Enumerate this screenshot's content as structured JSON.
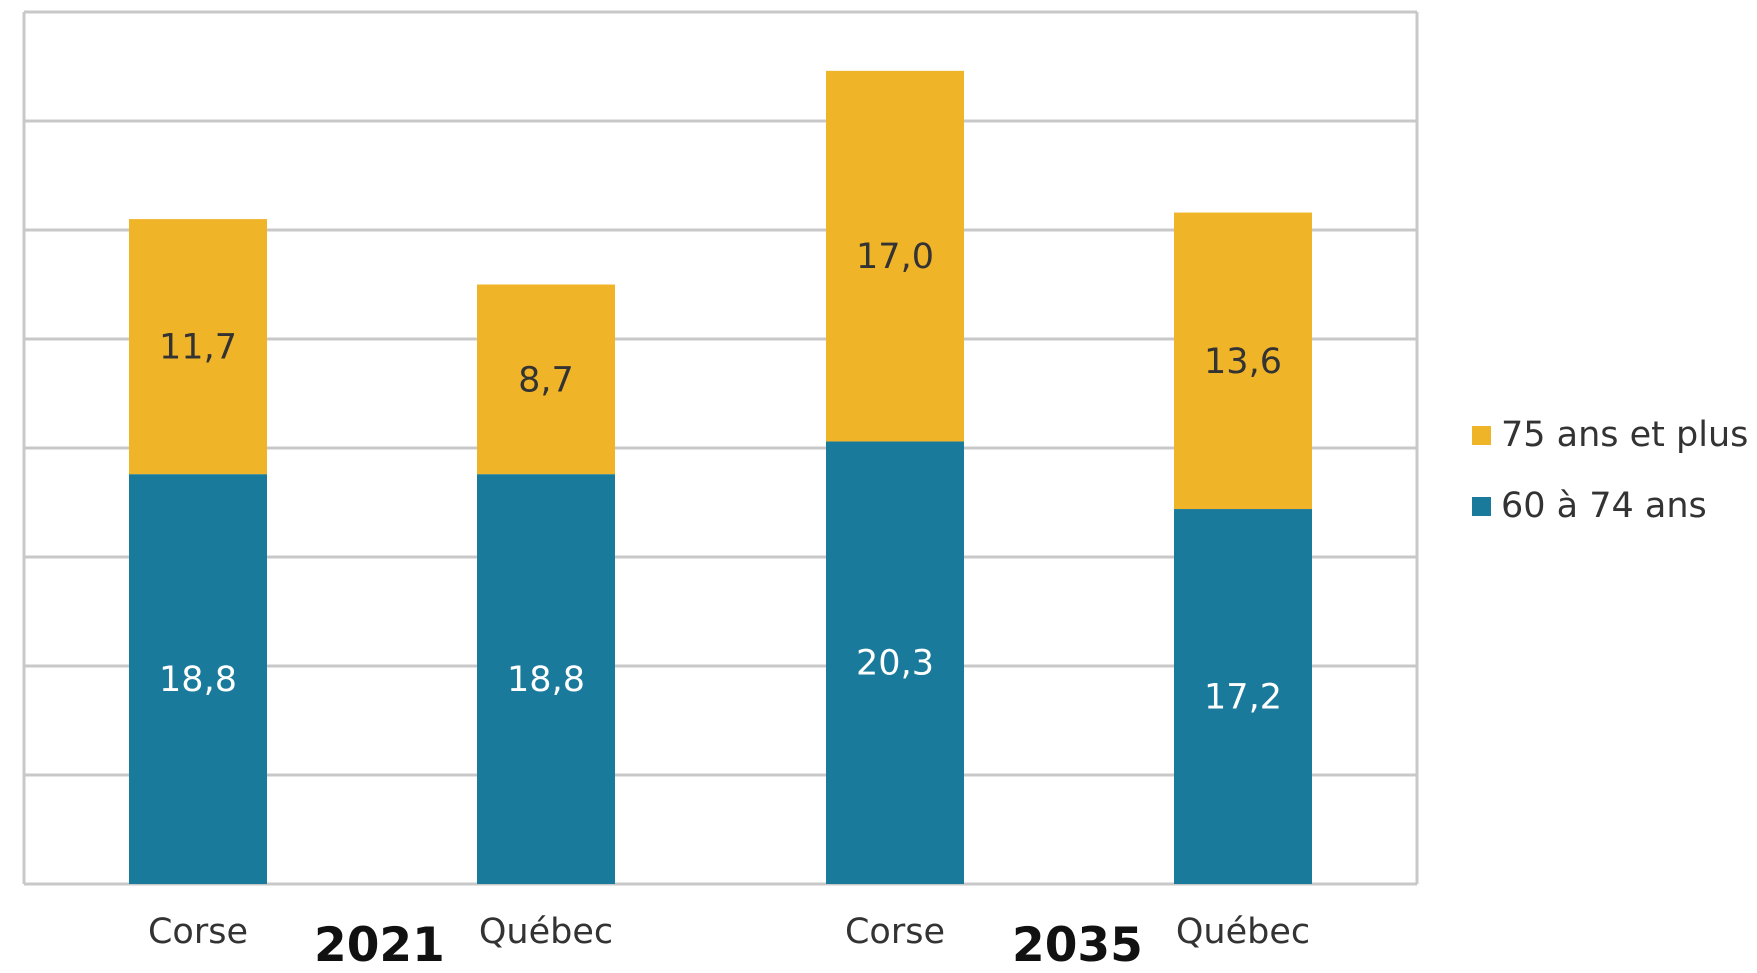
{
  "chart_data": {
    "type": "bar",
    "stacked": true,
    "categories": [
      "Corse",
      "Québec",
      "Corse",
      "Québec"
    ],
    "groups": [
      {
        "label": "2021",
        "categories": [
          "Corse",
          "Québec"
        ]
      },
      {
        "label": "2035",
        "categories": [
          "Corse",
          "Québec"
        ]
      }
    ],
    "series": [
      {
        "name": "60 à 74 ans",
        "values": [
          18.8,
          18.8,
          20.3,
          17.2
        ],
        "labels": [
          "18,8",
          "18,8",
          "20,3",
          "17,2"
        ],
        "color": "#1a7a9c"
      },
      {
        "name": "75 ans et plus",
        "values": [
          11.7,
          8.7,
          17.0,
          13.6
        ],
        "labels": [
          "11,7",
          "8,7",
          "17,0",
          "13,6"
        ],
        "color": "#f0b429"
      }
    ],
    "ylim": [
      0,
      40
    ],
    "grid": true,
    "legend_position": "right",
    "colors": {
      "grid": "#c8c8c8",
      "label_dark": "#333333",
      "label_light": "#ffffff"
    }
  }
}
